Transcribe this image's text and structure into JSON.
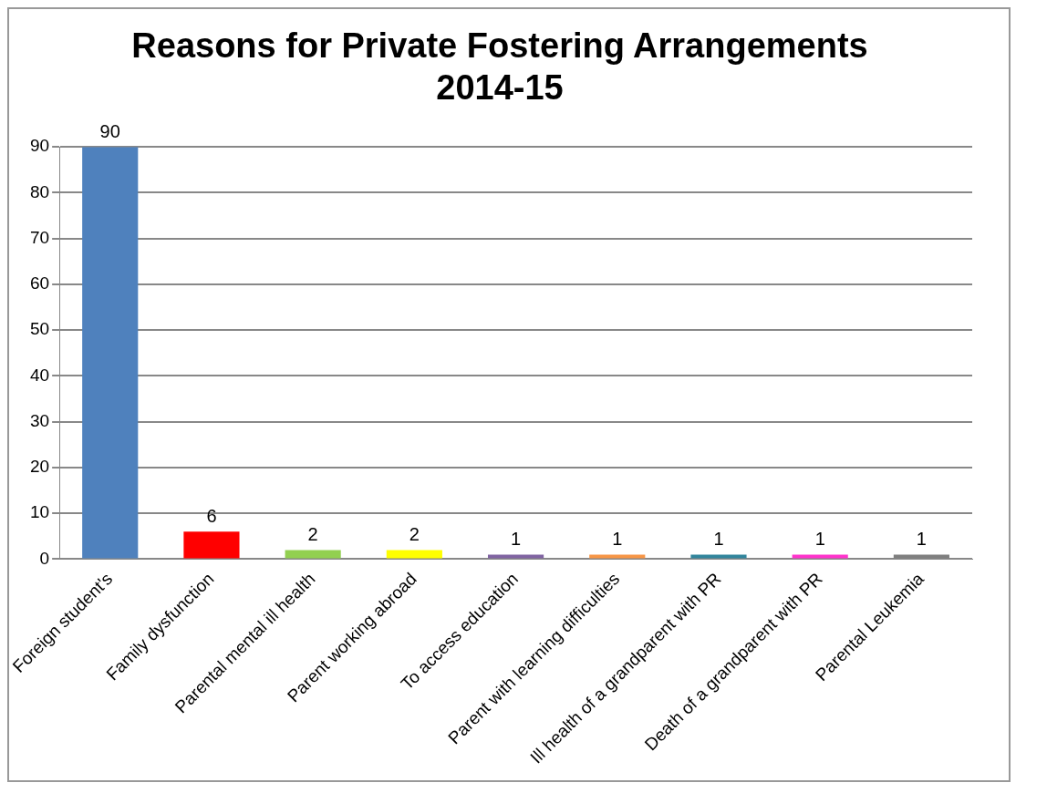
{
  "chart_data": {
    "type": "bar",
    "title": [
      "Reasons for Private Fostering Arrangements",
      "2014-15"
    ],
    "categories": [
      "Foreign student's",
      "Family dysfunction",
      "Parental mental ill health",
      "Parent working abroad",
      "To access education",
      "Parent with learning difficulties",
      "Ill health of a grandparent with PR",
      "Death of a grandparent with PR",
      "Parental Leukemia"
    ],
    "values": [
      90,
      6,
      2,
      2,
      1,
      1,
      1,
      1,
      1
    ],
    "colors": [
      "#4f81bd",
      "#ff0000",
      "#92d050",
      "#ffff00",
      "#8064a2",
      "#f79646",
      "#31859c",
      "#ff33cc",
      "#7f7f7f"
    ],
    "ylim": [
      0,
      90
    ],
    "yticks": [
      0,
      10,
      20,
      30,
      40,
      50,
      60,
      70,
      80,
      90
    ],
    "grid": "y",
    "data_labels": true,
    "legend": false
  }
}
